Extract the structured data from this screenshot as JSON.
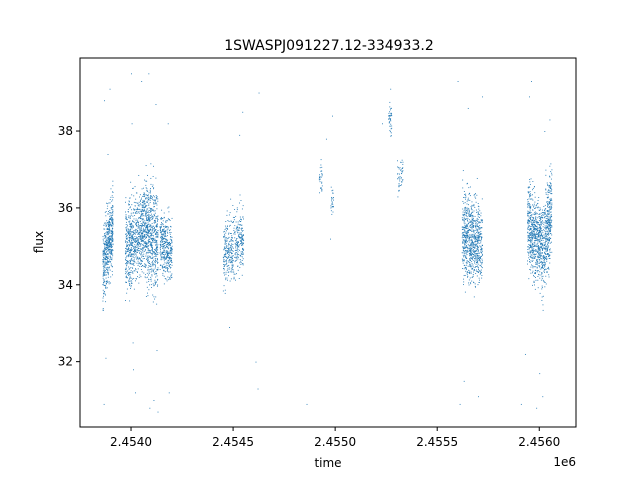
{
  "chart_data": {
    "type": "scatter",
    "title": "1SWASPJ091227.12-334933.2",
    "xlabel": "time",
    "ylabel": "flux",
    "x_offset_label": "1e6",
    "xlim": [
      2453750,
      2456180
    ],
    "ylim": [
      30.3,
      39.9
    ],
    "x_ticks": [
      2454000,
      2454500,
      2455000,
      2455500,
      2456000
    ],
    "x_tick_labels": [
      "2.4540",
      "2.4545",
      "2.4550",
      "2.4555",
      "2.4560"
    ],
    "y_ticks": [
      32,
      34,
      36,
      38
    ],
    "y_tick_labels": [
      "32",
      "34",
      "36",
      "38"
    ],
    "grid": false,
    "marker_color": "#1f77b4",
    "series": [
      {
        "clusters": [
          {
            "x_range": [
              2453860,
              2453910
            ],
            "y_center": 35.0,
            "y_spread": 0.9,
            "trend": 1.2,
            "n": 520
          },
          {
            "x_range": [
              2453970,
              2454060
            ],
            "y_center": 35.2,
            "y_spread": 1.0,
            "trend": 0.6,
            "n": 700
          },
          {
            "x_range": [
              2454060,
              2454130
            ],
            "y_center": 35.3,
            "y_spread": 1.2,
            "trend": -0.4,
            "n": 650
          },
          {
            "x_range": [
              2454140,
              2454200
            ],
            "y_center": 35.0,
            "y_spread": 0.7,
            "trend": -0.3,
            "n": 380
          },
          {
            "x_range": [
              2454450,
              2454550
            ],
            "y_center": 35.0,
            "y_spread": 0.8,
            "trend": 0.5,
            "n": 420
          },
          {
            "x_range": [
              2454920,
              2454935
            ],
            "y_center": 36.8,
            "y_spread": 0.4,
            "trend": 0.0,
            "n": 30
          },
          {
            "x_range": [
              2454975,
              2454990
            ],
            "y_center": 36.2,
            "y_spread": 0.4,
            "trend": 0.0,
            "n": 25
          },
          {
            "x_range": [
              2455260,
              2455275
            ],
            "y_center": 38.4,
            "y_spread": 0.4,
            "trend": 0.0,
            "n": 40
          },
          {
            "x_range": [
              2455300,
              2455330
            ],
            "y_center": 36.8,
            "y_spread": 0.4,
            "trend": 0.0,
            "n": 45
          },
          {
            "x_range": [
              2455620,
              2455720
            ],
            "y_center": 35.2,
            "y_spread": 1.0,
            "trend": -0.4,
            "n": 800
          },
          {
            "x_range": [
              2455940,
              2456010
            ],
            "y_center": 35.3,
            "y_spread": 1.0,
            "trend": -0.5,
            "n": 620
          },
          {
            "x_range": [
              2456010,
              2456060
            ],
            "y_center": 35.4,
            "y_spread": 1.1,
            "trend": 1.3,
            "n": 450
          }
        ],
        "outliers": [
          [
            2453868,
            38.8
          ],
          [
            2453875,
            32.1
          ],
          [
            2453866,
            30.9
          ],
          [
            2453885,
            37.4
          ],
          [
            2453895,
            39.1
          ],
          [
            2454000,
            39.5
          ],
          [
            2454003,
            38.2
          ],
          [
            2454008,
            32.5
          ],
          [
            2454010,
            31.8
          ],
          [
            2454020,
            31.2
          ],
          [
            2454050,
            39.3
          ],
          [
            2454085,
            39.5
          ],
          [
            2454090,
            30.8
          ],
          [
            2454110,
            31.0
          ],
          [
            2454120,
            38.7
          ],
          [
            2454125,
            32.3
          ],
          [
            2454130,
            30.7
          ],
          [
            2454180,
            38.2
          ],
          [
            2454185,
            31.2
          ],
          [
            2454480,
            32.9
          ],
          [
            2454530,
            37.9
          ],
          [
            2454545,
            38.5
          ],
          [
            2454610,
            32.0
          ],
          [
            2454620,
            31.3
          ],
          [
            2454625,
            39.0
          ],
          [
            2454860,
            30.9
          ],
          [
            2454955,
            37.8
          ],
          [
            2454985,
            38.4
          ],
          [
            2454975,
            35.2
          ],
          [
            2455230,
            38.2
          ],
          [
            2455270,
            39.1
          ],
          [
            2455330,
            37.2
          ],
          [
            2455600,
            39.3
          ],
          [
            2455610,
            30.9
          ],
          [
            2455630,
            31.5
          ],
          [
            2455650,
            38.6
          ],
          [
            2455700,
            31.1
          ],
          [
            2455720,
            38.9
          ],
          [
            2455910,
            30.9
          ],
          [
            2455930,
            32.2
          ],
          [
            2455950,
            38.9
          ],
          [
            2455960,
            39.3
          ],
          [
            2455985,
            30.8
          ],
          [
            2456000,
            31.7
          ],
          [
            2456015,
            31.1
          ],
          [
            2456025,
            38.0
          ],
          [
            2456050,
            38.3
          ]
        ]
      }
    ]
  }
}
